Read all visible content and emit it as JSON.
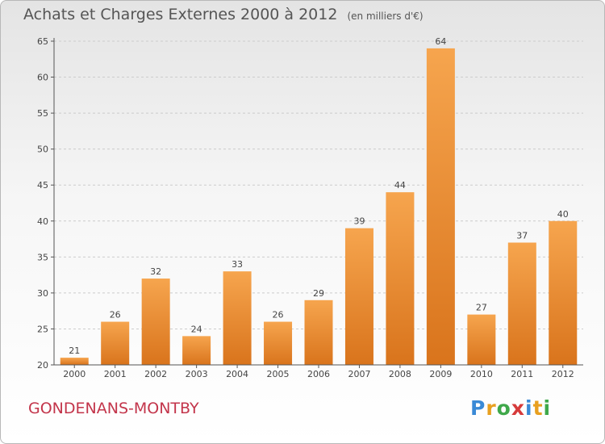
{
  "title": "Achats et Charges Externes 2000 à 2012",
  "subtitle": "(en milliers d'€)",
  "commune": "GONDENANS-MONTBY",
  "logo": {
    "text": "Proxiti",
    "letters": [
      "P",
      "r",
      "o",
      "x",
      "i",
      "t",
      "i"
    ],
    "colors": [
      "#3a8ad6",
      "#e8a020",
      "#3fa84a",
      "#d63a3a",
      "#3a8ad6",
      "#e8a020",
      "#3fa84a"
    ]
  },
  "colors": {
    "bar_light": "#f6a54e",
    "bar_dark": "#d9741c",
    "axis": "#555555",
    "grid": "#cccccc",
    "commune_text": "#c3354b"
  },
  "chart_data": {
    "type": "bar",
    "title": "Achats et Charges Externes 2000 à 2012",
    "subtitle": "(en milliers d'€)",
    "categories": [
      "2000",
      "2001",
      "2002",
      "2003",
      "2004",
      "2005",
      "2006",
      "2007",
      "2008",
      "2009",
      "2010",
      "2011",
      "2012"
    ],
    "values": [
      21,
      26,
      32,
      24,
      33,
      26,
      29,
      39,
      44,
      64,
      27,
      37,
      40
    ],
    "data_labels": [
      "21",
      "26",
      "32",
      "24",
      "33",
      "26",
      "29",
      "39",
      "44",
      "64",
      "27",
      "37",
      "40"
    ],
    "ylim": [
      20,
      65
    ],
    "yticks": [
      "20",
      "25",
      "30",
      "35",
      "40",
      "45",
      "50",
      "55",
      "60",
      "65"
    ],
    "xlabel": "",
    "ylabel": "",
    "grid": true
  }
}
